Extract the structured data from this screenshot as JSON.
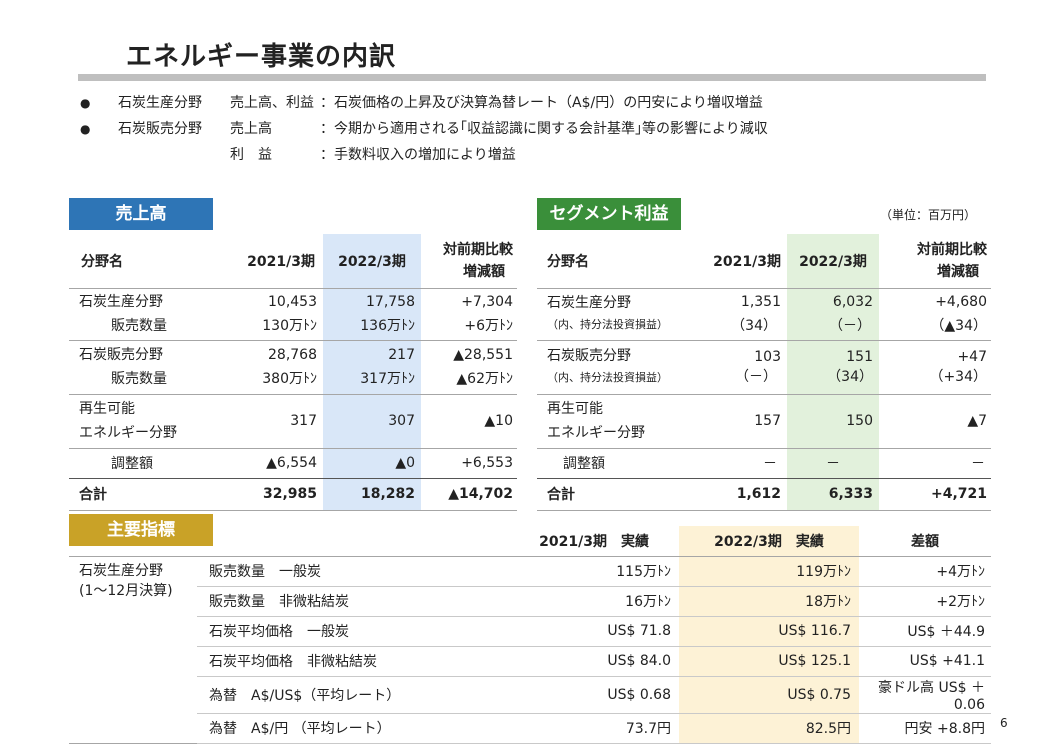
{
  "title": "エネルギー事業の内訳",
  "notes": [
    {
      "bullet": "●",
      "c1": "石炭生産分野",
      "c2": "売上高、利益",
      "c3": "：石炭価格の上昇及び決算為替レート（A$/円）の円安により増収増益"
    },
    {
      "bullet": "●",
      "c1": "石炭販売分野",
      "c2": "売上高",
      "c3": "：今期から適用される｢収益認識に関する会計基準｣等の影響により減収"
    },
    {
      "bullet": "",
      "c1": "",
      "c2": "利　益",
      "c3": "：手数料収入の増加により増益"
    }
  ],
  "colors": {
    "blue_label": "#2e75b6",
    "green_label": "#3a8f3a",
    "gold_label": "#c9a227"
  },
  "sales": {
    "label": "売上高",
    "headers": {
      "name": "分野名",
      "y2021": "2021/3期",
      "y2022": "2022/3期",
      "diff1": "対前期比較",
      "diff2": "増減額"
    },
    "rows": [
      {
        "name": "石炭生産分野",
        "sub": "販売数量",
        "a": "10,453",
        "a_sub": "130万ﾄﾝ",
        "b": "17,758",
        "b_sub": "136万ﾄﾝ",
        "d": "+7,304",
        "d_sub": "+6万ﾄﾝ"
      },
      {
        "name": "石炭販売分野",
        "sub": "販売数量",
        "a": "28,768",
        "a_sub": "380万ﾄﾝ",
        "b": "217",
        "b_sub": "317万ﾄﾝ",
        "d": "▲28,551",
        "d_sub": "▲62万ﾄﾝ"
      },
      {
        "name": "再生可能",
        "sub": "エネルギー分野",
        "a": "317",
        "b": "307",
        "d": "▲10"
      },
      {
        "name": "調整額",
        "a": "▲6,554",
        "b": "▲0",
        "d": "+6,553"
      }
    ],
    "total": {
      "name": "合計",
      "a": "32,985",
      "b": "18,282",
      "d": "▲14,702"
    }
  },
  "segment": {
    "label": "セグメント利益",
    "unit": "（単位：百万円）",
    "headers": {
      "name": "分野名",
      "y2021": "2021/3期",
      "y2022": "2022/3期",
      "diff1": "対前期比較",
      "diff2": "増減額"
    },
    "rows": [
      {
        "name": "石炭生産分野",
        "sub": "（内、持分法投資損益）",
        "a": "1,351",
        "a_sub": "（34）",
        "b": "6,032",
        "b_sub": "（－）",
        "d": "+4,680",
        "d_sub": "（▲34）"
      },
      {
        "name": "石炭販売分野",
        "sub": "（内、持分法投資損益）",
        "a": "103",
        "a_sub": "（－）",
        "b": "151",
        "b_sub": "（34）",
        "d": "+47",
        "d_sub": "（+34）"
      },
      {
        "name": "再生可能",
        "sub": "エネルギー分野",
        "a": "157",
        "b": "150",
        "d": "▲7"
      },
      {
        "name": "調整額",
        "a": "－",
        "b": "－",
        "d": "－"
      }
    ],
    "total": {
      "name": "合計",
      "a": "1,612",
      "b": "6,333",
      "d": "+4,721"
    }
  },
  "kpi": {
    "label": "主要指標",
    "headers": {
      "y2021": "2021/3期　実績",
      "y2022": "2022/3期　実績",
      "diff": "差額"
    },
    "group_name1": "石炭生産分野",
    "group_name2": "(1～12月決算)",
    "rows": [
      {
        "item": "販売数量　一般炭",
        "a": "115万ﾄﾝ",
        "b": "119万ﾄﾝ",
        "d": "+4万ﾄﾝ"
      },
      {
        "item": "販売数量　非微粘結炭",
        "a": "16万ﾄﾝ",
        "b": "18万ﾄﾝ",
        "d": "+2万ﾄﾝ"
      },
      {
        "item": "石炭平均価格　一般炭",
        "a": "US$ 71.8",
        "b": "US$ 116.7",
        "d": "US$ ＋44.9"
      },
      {
        "item": "石炭平均価格　非微粘結炭",
        "a": "US$ 84.0",
        "b": "US$ 125.1",
        "d": "US$ +41.1"
      },
      {
        "item": "為替　A$/US$（平均レート）",
        "a": "US$ 0.68",
        "b": "US$ 0.75",
        "d": "豪ドル高 US$ ＋0.06"
      },
      {
        "item": "為替　A$/円 （平均レート）",
        "a": "73.7円",
        "b": "82.5円",
        "d": "円安 +8.8円"
      }
    ]
  },
  "page_number": "6"
}
